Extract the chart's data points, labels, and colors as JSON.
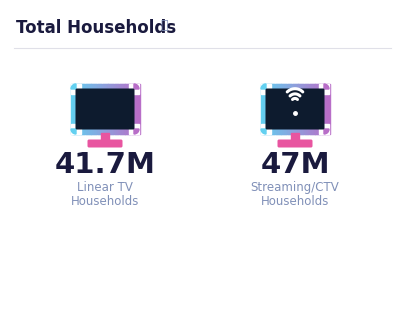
{
  "title": "Total Households",
  "info_symbol": "ⓘ",
  "left_value": "41.7M",
  "left_label_line1": "Linear TV",
  "left_label_line2": "Households",
  "right_value": "47M",
  "right_label_line1": "Streaming/CTV",
  "right_label_line2": "Households",
  "background_color": "#f8f8fb",
  "card_color": "#ffffff",
  "border_color": "#d8d8e0",
  "title_color": "#1a1a3e",
  "value_color": "#1a1a3e",
  "label_color": "#8090b8",
  "title_fontsize": 12,
  "value_fontsize": 21,
  "label_fontsize": 8.5,
  "tv_screen_color": "#0d1b2e",
  "tv_grad_left": "#62d0f0",
  "tv_grad_right": "#b86ec8",
  "tv_stand_color": "#e855a0",
  "divider_color": "#e0e0e8",
  "info_color": "#8090b8"
}
